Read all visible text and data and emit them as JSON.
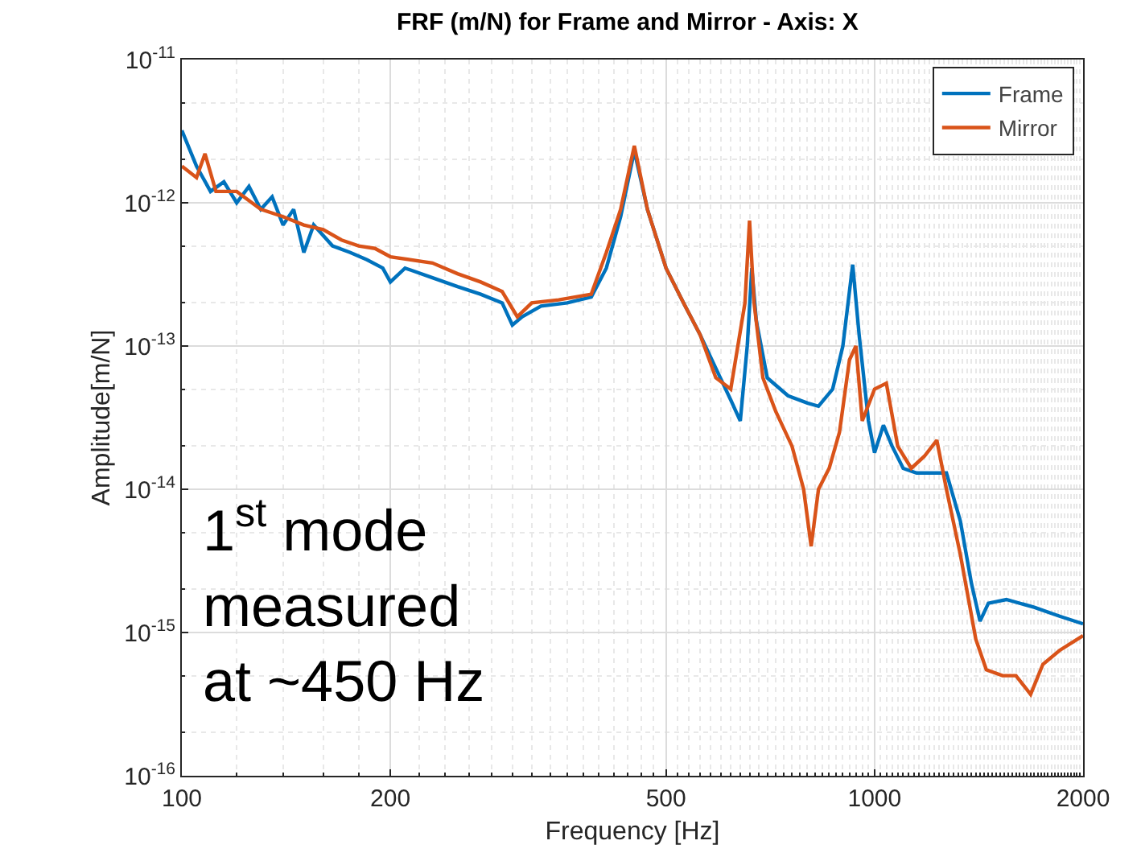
{
  "chart_data": {
    "type": "line",
    "title": "FRF (m/N) for Frame and Mirror - Axis: X",
    "xlabel": "Frequency [Hz]",
    "ylabel": "Amplitude[m/N]",
    "log": "xy",
    "grid": true,
    "legend": "top right",
    "xlim": [
      100,
      2000
    ],
    "xticks": [
      100,
      200,
      500,
      1000,
      2000
    ],
    "ylim": [
      1e-16,
      1e-11
    ],
    "yticks": [
      {
        "value": 1e-16,
        "label": "10$^{-16}$"
      },
      {
        "value": 1e-15,
        "label": "10$^{-15}$"
      },
      {
        "value": 1e-14,
        "label": "10$^{-14}$"
      },
      {
        "value": 1e-13,
        "label": "10$^{-13}$"
      },
      {
        "value": 1e-12,
        "label": "10$^{-12}$"
      },
      {
        "value": 1e-11,
        "label": "10$^{-11}$"
      }
    ],
    "annotations": [
      "1$^{st}$ mode\nmeasured\nat ~450 Hz"
    ],
    "series": [
      {
        "name": "Frame",
        "color": "#0072bd",
        "x": [
          100,
          105,
          110,
          115,
          120,
          125,
          130,
          135,
          140,
          145,
          150,
          155,
          165,
          175,
          185,
          195,
          200,
          210,
          230,
          250,
          270,
          290,
          300,
          310,
          330,
          360,
          390,
          410,
          430,
          450,
          470,
          500,
          530,
          560,
          590,
          620,
          640,
          655,
          665,
          675,
          700,
          750,
          800,
          830,
          870,
          900,
          930,
          950,
          980,
          1000,
          1030,
          1060,
          1100,
          1150,
          1230,
          1270,
          1330,
          1380,
          1420,
          1460,
          1550,
          1700,
          1850,
          2000
        ],
        "values": [
          3.2e-12,
          1.8e-12,
          1.2e-12,
          1.4e-12,
          1e-12,
          1.3e-12,
          9e-13,
          1.1e-12,
          7e-13,
          9e-13,
          4.5e-13,
          7e-13,
          5e-13,
          4.5e-13,
          4e-13,
          3.5e-13,
          2.8e-13,
          3.5e-13,
          3e-13,
          2.6e-13,
          2.3e-13,
          2e-13,
          1.4e-13,
          1.6e-13,
          1.9e-13,
          2e-13,
          2.2e-13,
          3.5e-13,
          8e-13,
          2.3e-12,
          9e-13,
          3.5e-13,
          2e-13,
          1.2e-13,
          7e-14,
          4.2e-14,
          3e-14,
          1e-13,
          3.5e-13,
          1.5e-13,
          6e-14,
          4.5e-14,
          4e-14,
          3.8e-14,
          5e-14,
          1e-13,
          3.7e-13,
          1.2e-13,
          3e-14,
          1.8e-14,
          2.8e-14,
          2e-14,
          1.4e-14,
          1.3e-14,
          1.3e-14,
          1.3e-14,
          6e-15,
          2.2e-15,
          1.2e-15,
          1.6e-15,
          1.7e-15,
          1.5e-15,
          1.3e-15,
          1.15e-15
        ]
      },
      {
        "name": "Mirror",
        "color": "#d95319",
        "x": [
          100,
          105,
          108,
          112,
          120,
          130,
          140,
          150,
          160,
          170,
          180,
          190,
          200,
          230,
          250,
          270,
          290,
          305,
          320,
          350,
          390,
          410,
          430,
          450,
          470,
          500,
          530,
          560,
          590,
          620,
          650,
          660,
          670,
          690,
          720,
          760,
          790,
          810,
          830,
          860,
          890,
          920,
          940,
          960,
          1000,
          1040,
          1080,
          1130,
          1180,
          1230,
          1270,
          1330,
          1400,
          1450,
          1530,
          1600,
          1680,
          1750,
          1850,
          2000
        ],
        "values": [
          1.8e-12,
          1.5e-12,
          2.2e-12,
          1.2e-12,
          1.2e-12,
          9e-13,
          8e-13,
          7e-13,
          6.5e-13,
          5.5e-13,
          5e-13,
          4.8e-13,
          4.2e-13,
          3.8e-13,
          3.2e-13,
          2.8e-13,
          2.4e-13,
          1.6e-13,
          2e-13,
          2.1e-13,
          2.3e-13,
          4.5e-13,
          9e-13,
          2.5e-12,
          9e-13,
          3.5e-13,
          2e-13,
          1.2e-13,
          6e-14,
          5e-14,
          2e-13,
          7.5e-13,
          2e-13,
          6e-14,
          3.5e-14,
          2e-14,
          1e-14,
          4e-15,
          1e-14,
          1.4e-14,
          2.5e-14,
          8e-14,
          1e-13,
          3e-14,
          5e-14,
          5.5e-14,
          2e-14,
          1.4e-14,
          1.7e-14,
          2.2e-14,
          1e-14,
          3.5e-15,
          9e-16,
          5.5e-16,
          5e-16,
          5e-16,
          3.7e-16,
          6e-16,
          7.5e-16,
          9.5e-16
        ]
      }
    ]
  }
}
